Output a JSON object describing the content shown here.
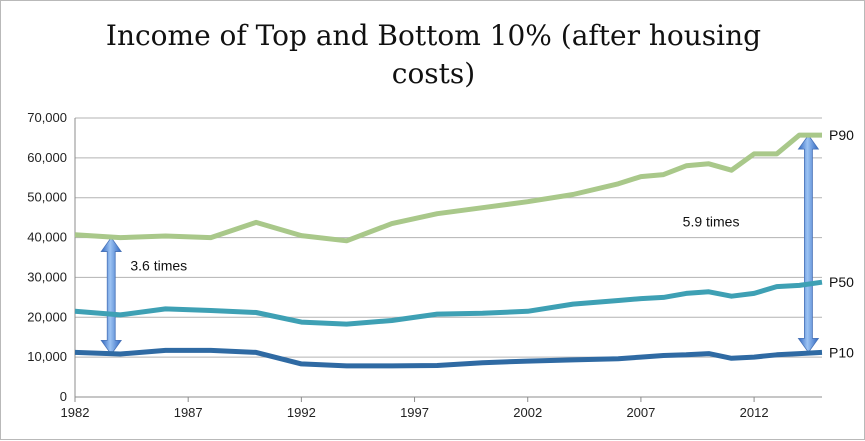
{
  "chart_data": {
    "type": "line",
    "title_line1": "Income of Top and Bottom 10% (after housing",
    "title_line2": "costs)",
    "xlabel": "",
    "ylabel": "",
    "xlim": [
      1982,
      2015
    ],
    "ylim": [
      0,
      70000
    ],
    "grid": true,
    "x_ticks": [
      1982,
      1987,
      1992,
      1997,
      2002,
      2007,
      2012
    ],
    "x_tick_labels": [
      "1982",
      "1987",
      "1992",
      "1997",
      "2002",
      "2007",
      "2012"
    ],
    "y_ticks": [
      0,
      10000,
      20000,
      30000,
      40000,
      50000,
      60000,
      70000
    ],
    "y_tick_labels": [
      "0",
      "10,000",
      "20,000",
      "30,000",
      "40,000",
      "50,000",
      "60,000",
      "70,000"
    ],
    "series": [
      {
        "name": "P90",
        "color": "#a9c88a",
        "x": [
          1982,
          1984,
          1986,
          1988,
          1990,
          1992,
          1994,
          1996,
          1998,
          2000,
          2002,
          2004,
          2006,
          2007,
          2008,
          2009,
          2010,
          2011,
          2012,
          2013,
          2014,
          2015
        ],
        "values": [
          40700,
          40000,
          40400,
          40000,
          43800,
          40500,
          39200,
          43500,
          46000,
          47500,
          49000,
          50800,
          53500,
          55300,
          55800,
          58000,
          58500,
          56900,
          61000,
          61000,
          65700,
          65700
        ]
      },
      {
        "name": "P50",
        "color": "#3ea0b4",
        "x": [
          1982,
          1984,
          1986,
          1988,
          1990,
          1992,
          1994,
          1996,
          1998,
          2000,
          2002,
          2004,
          2006,
          2007,
          2008,
          2009,
          2010,
          2011,
          2012,
          2013,
          2014,
          2015
        ],
        "values": [
          21500,
          20600,
          22100,
          21700,
          21200,
          18800,
          18300,
          19200,
          20800,
          21000,
          21500,
          23300,
          24200,
          24700,
          25000,
          26000,
          26400,
          25300,
          26000,
          27700,
          28000,
          28800
        ]
      },
      {
        "name": "P10",
        "color": "#2f6aa3",
        "x": [
          1982,
          1984,
          1986,
          1988,
          1990,
          1992,
          1994,
          1996,
          1998,
          2000,
          2002,
          2004,
          2006,
          2007,
          2008,
          2009,
          2010,
          2011,
          2012,
          2013,
          2014,
          2015
        ],
        "values": [
          11200,
          10800,
          11700,
          11700,
          11200,
          8300,
          7800,
          7800,
          7900,
          8600,
          9000,
          9300,
          9600,
          10000,
          10400,
          10600,
          10900,
          9700,
          10000,
          10600,
          10900,
          11200
        ]
      }
    ],
    "annotations": [
      {
        "text": "3.6 times",
        "x": 1985.7,
        "y": 33000
      },
      {
        "text": "5.9 times",
        "x": 2010.1,
        "y": 44000
      }
    ],
    "arrows": [
      {
        "x": 1983.6,
        "from": 40000,
        "to": 10700
      },
      {
        "x": 2014.4,
        "from": 65700,
        "to": 11200
      }
    ]
  }
}
